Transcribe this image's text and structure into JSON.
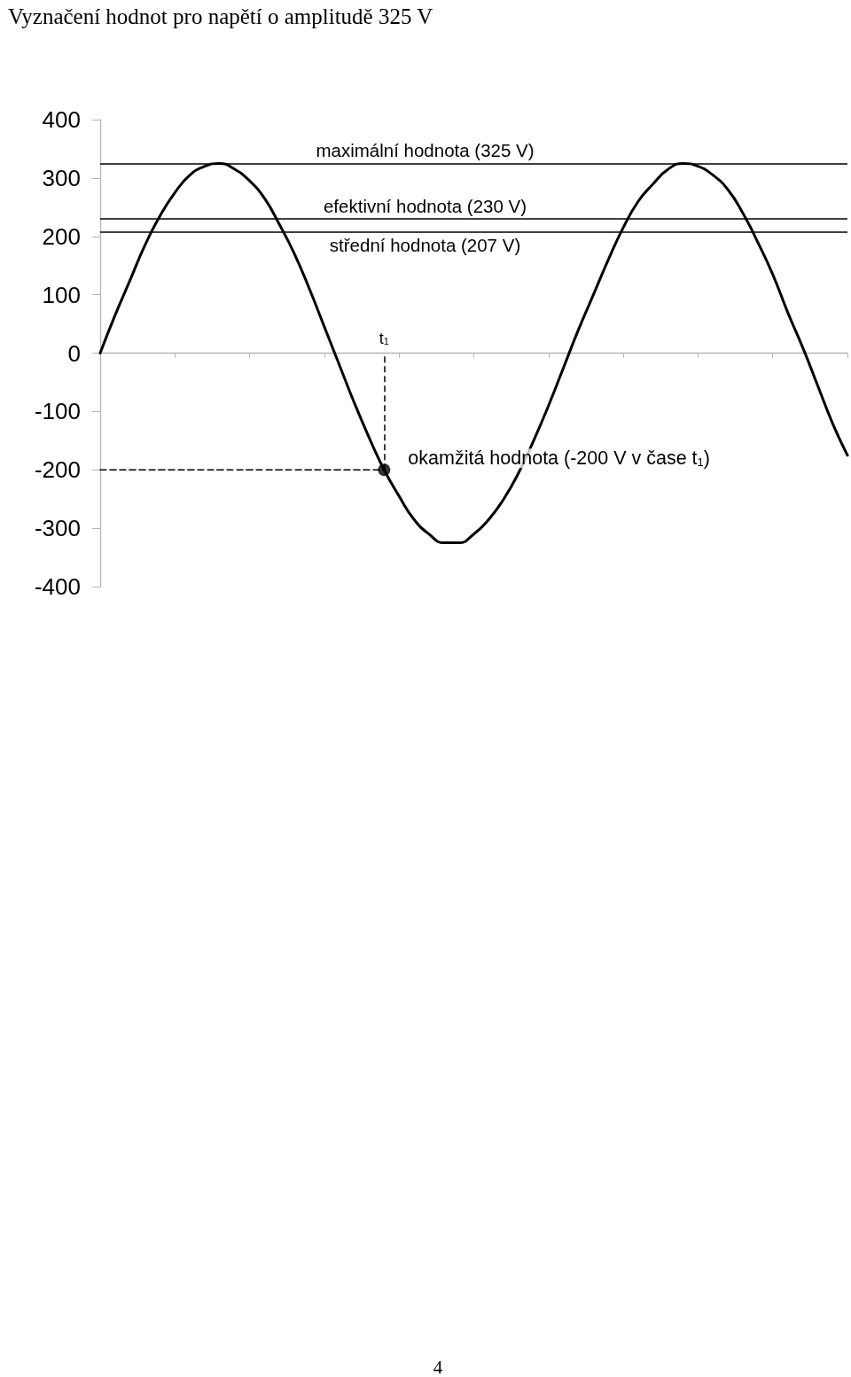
{
  "chart_data": {
    "type": "line",
    "title": "Vyznačení hodnot pro napětí o amplitudě 325 V",
    "categories": [
      null,
      null,
      null,
      null,
      null,
      null,
      null,
      null,
      null,
      null,
      null,
      null,
      null,
      null,
      null,
      null,
      null,
      null,
      null,
      "t$_{1}$",
      null,
      null,
      null,
      null,
      null,
      null,
      null,
      null,
      null,
      null,
      null,
      null,
      null,
      null,
      null,
      null,
      null,
      null,
      null,
      null,
      null,
      null,
      null,
      null,
      null,
      null,
      null,
      null,
      null,
      null,
      null
    ],
    "ylim": [
      -400,
      400
    ],
    "yticks": [
      -400,
      -300,
      -200,
      -100,
      0,
      100,
      200,
      300,
      400
    ],
    "marker": "none",
    "line_style": "solid",
    "series": [
      {
        "color": "#000000",
        "values": [
          0,
          65,
          125,
          185,
          235,
          275,
          305,
          320,
          325,
          315,
          295,
          265,
          220,
          170,
          110,
          45,
          -20,
          -85,
          -145,
          -200,
          -245,
          -285,
          -310,
          -325,
          -325,
          -310,
          -285,
          -250,
          -205,
          -150,
          -90,
          -25,
          40,
          100,
          160,
          215,
          260,
          290,
          315,
          325,
          320,
          305,
          280,
          240,
          190,
          135,
          70,
          10,
          -55,
          -120,
          -175
        ]
      },
      {
        "color": "#000000",
        "line_style": "dashed",
        "values": [
          -200,
          -200,
          -200,
          -200,
          -200,
          -200,
          -200,
          -200,
          -200,
          -200,
          -200,
          -200,
          -200,
          -200,
          -200,
          -200,
          -200,
          -200,
          -200,
          -200,
          null,
          null,
          null,
          null,
          null,
          null,
          null,
          null,
          null,
          null,
          null,
          null,
          null,
          null,
          null,
          null,
          null,
          null,
          null,
          null,
          null,
          null,
          null,
          null,
          null,
          null,
          null,
          null,
          null,
          null,
          null
        ]
      },
      {
        "type": "scatter",
        "color": "#000000",
        "marker": "circle",
        "line_style": "dashed",
        "x": [
          "t$_{1}$"
        ],
        "values": [
          -200
        ]
      }
    ],
    "ref_lines": [
      {
        "axis": "y",
        "value": 325,
        "label": "maximální hodnota (325 V)",
        "color": "#000000"
      },
      {
        "axis": "y",
        "value": 230,
        "label": "efektivní hodnota (230 V)",
        "color": "#000000"
      },
      {
        "axis": "y",
        "value": 207,
        "label": "střední hodnota (207 V)",
        "color": "#000000"
      }
    ],
    "annotations": [
      {
        "text": "okamžitá hodnota (-200 V v čase t$_{1}$)",
        "x": "t$_{1}$",
        "y": -200
      },
      "4"
    ]
  }
}
